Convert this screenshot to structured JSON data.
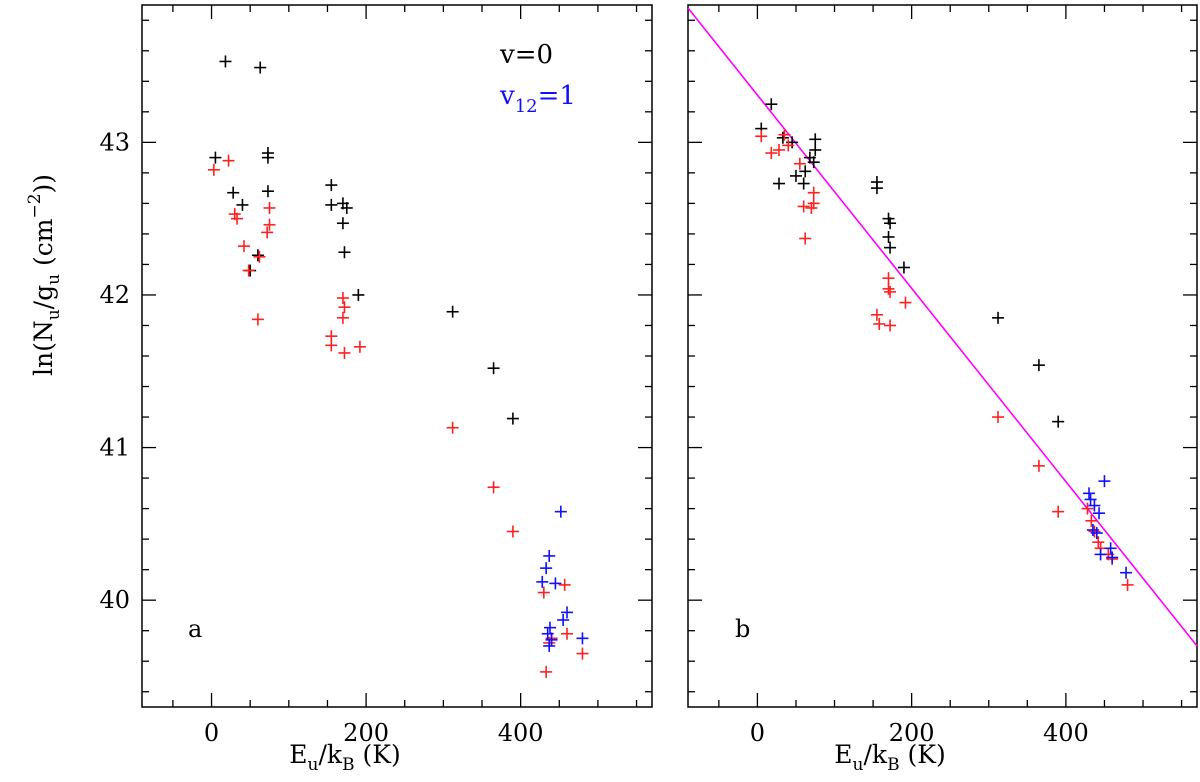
{
  "figure": {
    "ylabel_main": "ln(N",
    "ylabel_sub1": "u",
    "ylabel_mid": "/g",
    "ylabel_sub2": "u",
    "ylabel_unit": "  (cm",
    "ylabel_sup": "−2",
    "ylabel_end": "))",
    "xlabel_main": "E",
    "xlabel_sub1": "u",
    "xlabel_mid": "/k",
    "xlabel_sub2": "B",
    "xlabel_end": "  (K)",
    "legend_v0": "v=0",
    "legend_v12_main": "v",
    "legend_v12_sub": "12",
    "legend_v12_end": "=1",
    "colors": {
      "black": "#000000",
      "red": "#ff2020",
      "blue": "#1010ff",
      "fit": "#ff00ff"
    }
  },
  "chart_data": [
    {
      "type": "scatter",
      "panel": "a",
      "xlim": [
        -90,
        570
      ],
      "ylim": [
        39.3,
        43.9
      ],
      "xticks": [
        0,
        200,
        400
      ],
      "yticks": [
        40,
        41,
        42,
        43
      ],
      "xlabel": "Eu/kB (K)",
      "ylabel": "ln(Nu/gu (cm^-2))",
      "legend": [
        "v=0",
        "v12=1"
      ],
      "series": [
        {
          "name": "v=0 (black)",
          "color": "#000000",
          "x": [
            18,
            63,
            5,
            73,
            73,
            28,
            40,
            73,
            60,
            50,
            155,
            170,
            155,
            175,
            170,
            172,
            190,
            312,
            365,
            390
          ],
          "y": [
            43.53,
            43.49,
            42.9,
            42.93,
            42.9,
            42.67,
            42.59,
            42.68,
            42.26,
            42.16,
            42.72,
            42.6,
            42.59,
            42.57,
            42.47,
            42.28,
            42.0,
            41.89,
            41.52,
            41.19
          ]
        },
        {
          "name": "v=0 (red)",
          "color": "#ff2020",
          "x": [
            3,
            22,
            30,
            33,
            42,
            48,
            62,
            75,
            75,
            72,
            60,
            155,
            155,
            170,
            172,
            170,
            172,
            192,
            312,
            365,
            390,
            430,
            433,
            440,
            437,
            457,
            460,
            480
          ],
          "y": [
            42.82,
            42.88,
            42.53,
            42.5,
            42.32,
            42.16,
            42.25,
            42.57,
            42.46,
            42.41,
            41.84,
            41.73,
            41.67,
            41.98,
            41.92,
            41.85,
            41.62,
            41.66,
            41.13,
            40.74,
            40.45,
            40.05,
            39.53,
            39.75,
            39.72,
            40.1,
            39.78,
            39.65
          ]
        },
        {
          "name": "v12=1",
          "color": "#1010ff",
          "x": [
            428,
            433,
            437,
            445,
            438,
            452,
            455,
            460,
            480,
            435,
            437,
            440
          ],
          "y": [
            40.12,
            40.21,
            40.29,
            40.11,
            39.82,
            40.58,
            39.87,
            39.92,
            39.75,
            39.78,
            39.7,
            39.74
          ]
        }
      ]
    },
    {
      "type": "scatter",
      "panel": "b",
      "xlim": [
        -90,
        570
      ],
      "ylim": [
        39.3,
        43.9
      ],
      "xticks": [
        0,
        200,
        400
      ],
      "yticks": [
        40,
        41,
        42,
        43
      ],
      "xlabel": "Eu/kB (K)",
      "ylabel": "",
      "fit_line": {
        "x": [
          -90,
          570
        ],
        "y": [
          43.88,
          39.7
        ],
        "color": "#ff00ff"
      },
      "series": [
        {
          "name": "v=0 (black)",
          "color": "#000000",
          "x": [
            18,
            5,
            33,
            28,
            45,
            50,
            62,
            75,
            75,
            68,
            73,
            60,
            155,
            155,
            170,
            172,
            170,
            172,
            190,
            312,
            365,
            390
          ],
          "y": [
            43.25,
            43.09,
            43.03,
            42.73,
            43.0,
            42.78,
            42.81,
            43.02,
            42.95,
            42.9,
            42.87,
            42.73,
            42.74,
            42.7,
            42.5,
            42.47,
            42.38,
            42.31,
            42.18,
            41.85,
            41.54,
            41.17
          ]
        },
        {
          "name": "v=0 (red)",
          "color": "#ff2020",
          "x": [
            5,
            18,
            28,
            35,
            40,
            55,
            60,
            73,
            73,
            70,
            62,
            155,
            158,
            170,
            170,
            172,
            172,
            192,
            312,
            365,
            390,
            428,
            433,
            437,
            442,
            445,
            455,
            460,
            480
          ],
          "y": [
            43.04,
            42.93,
            42.95,
            43.05,
            42.98,
            42.86,
            42.58,
            42.67,
            42.6,
            42.57,
            42.37,
            41.87,
            41.81,
            42.11,
            42.04,
            42.02,
            41.8,
            41.95,
            41.2,
            40.88,
            40.58,
            40.6,
            40.52,
            40.45,
            40.38,
            40.34,
            40.3,
            40.27,
            40.1
          ]
        },
        {
          "name": "v12=1",
          "color": "#1010ff",
          "x": [
            430,
            432,
            437,
            443,
            435,
            450,
            440,
            445,
            458,
            460,
            478
          ],
          "y": [
            40.7,
            40.66,
            40.62,
            40.57,
            40.46,
            40.78,
            40.44,
            40.3,
            40.34,
            40.28,
            40.18
          ]
        }
      ]
    }
  ]
}
